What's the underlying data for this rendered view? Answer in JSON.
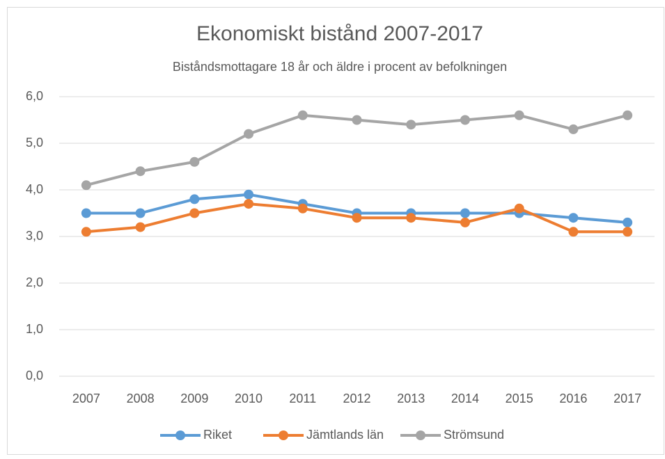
{
  "chart_data": {
    "type": "line",
    "title": "Ekonomiskt bistånd 2007-2017",
    "subtitle": "Biståndsmottagare 18 år och äldre i procent av befolkningen",
    "categories": [
      "2007",
      "2008",
      "2009",
      "2010",
      "2011",
      "2012",
      "2013",
      "2014",
      "2015",
      "2016",
      "2017"
    ],
    "series": [
      {
        "name": "Riket",
        "color": "#5b9bd5",
        "values": [
          3.5,
          3.5,
          3.8,
          3.9,
          3.7,
          3.5,
          3.5,
          3.5,
          3.5,
          3.4,
          3.3
        ]
      },
      {
        "name": "Jämtlands län",
        "color": "#ed7d31",
        "values": [
          3.1,
          3.2,
          3.5,
          3.7,
          3.6,
          3.4,
          3.4,
          3.3,
          3.6,
          3.1,
          3.1
        ]
      },
      {
        "name": "Strömsund",
        "color": "#a5a5a5",
        "values": [
          4.1,
          4.4,
          4.6,
          5.2,
          5.6,
          5.5,
          5.4,
          5.5,
          5.6,
          5.3,
          5.6
        ]
      }
    ],
    "ylim": [
      0,
      6
    ],
    "yticks": [
      {
        "value": 0,
        "label": "0,0"
      },
      {
        "value": 1,
        "label": "1,0"
      },
      {
        "value": 2,
        "label": "2,0"
      },
      {
        "value": 3,
        "label": "3,0"
      },
      {
        "value": 4,
        "label": "4,0"
      },
      {
        "value": 5,
        "label": "5,0"
      },
      {
        "value": 6,
        "label": "6,0"
      }
    ],
    "grid": true,
    "legend": "bottom"
  }
}
